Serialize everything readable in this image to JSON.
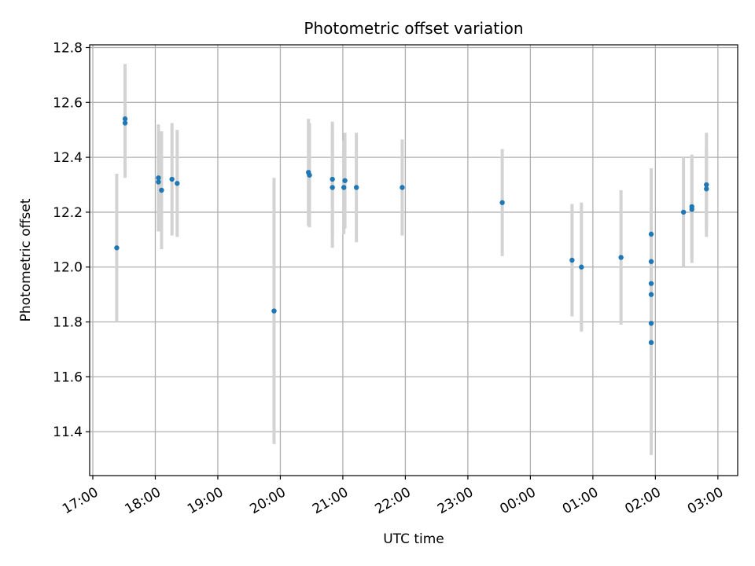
{
  "chart_data": {
    "type": "scatter",
    "title": "Photometric offset variation",
    "xlabel": "UTC time",
    "ylabel": "Photometric offset",
    "x_unit": "UTC time (hours, continuing past midnight)",
    "xlim": [
      "16:57",
      "03:19"
    ],
    "ylim": [
      11.24,
      12.81
    ],
    "yticks": [
      11.4,
      11.6,
      11.8,
      12.0,
      12.2,
      12.4,
      12.6,
      12.8
    ],
    "xticks": [
      "17:00",
      "18:00",
      "19:00",
      "20:00",
      "21:00",
      "22:00",
      "23:00",
      "00:00",
      "01:00",
      "02:00",
      "03:00"
    ],
    "grid": true,
    "marker_color": "#1f77b4",
    "errorbar_color": "#d3d3d3",
    "points": [
      {
        "t": "17:23",
        "y": 12.07,
        "err": 0.27
      },
      {
        "t": "17:31",
        "y": 12.54,
        "err": 0.2
      },
      {
        "t": "17:31",
        "y": 12.525,
        "err": 0.2
      },
      {
        "t": "18:03",
        "y": 12.325,
        "err": 0.195
      },
      {
        "t": "18:03",
        "y": 12.31,
        "err": 0.18
      },
      {
        "t": "18:06",
        "y": 12.28,
        "err": 0.215
      },
      {
        "t": "18:16",
        "y": 12.32,
        "err": 0.205
      },
      {
        "t": "18:21",
        "y": 12.305,
        "err": 0.195
      },
      {
        "t": "19:54",
        "y": 11.84,
        "err": 0.485
      },
      {
        "t": "20:27",
        "y": 12.345,
        "err": 0.195
      },
      {
        "t": "20:28",
        "y": 12.335,
        "err": 0.19
      },
      {
        "t": "20:50",
        "y": 12.32,
        "err": 0.21
      },
      {
        "t": "20:50",
        "y": 12.29,
        "err": 0.22
      },
      {
        "t": "21:01",
        "y": 12.29,
        "err": 0.17
      },
      {
        "t": "21:02",
        "y": 12.315,
        "err": 0.175
      },
      {
        "t": "21:13",
        "y": 12.29,
        "err": 0.2
      },
      {
        "t": "21:57",
        "y": 12.29,
        "err": 0.175
      },
      {
        "t": "23:33",
        "y": 12.235,
        "err": 0.195
      },
      {
        "t": "00:40",
        "y": 12.025,
        "err": 0.205
      },
      {
        "t": "00:49",
        "y": 12.0,
        "err": 0.235
      },
      {
        "t": "01:27",
        "y": 12.035,
        "err": 0.245
      },
      {
        "t": "01:56",
        "y": 12.12,
        "err": 0.24
      },
      {
        "t": "01:56",
        "y": 12.02,
        "err": 0.2
      },
      {
        "t": "01:56",
        "y": 11.94,
        "err": 0.12
      },
      {
        "t": "01:56",
        "y": 11.9,
        "err": 0.12
      },
      {
        "t": "01:56",
        "y": 11.795,
        "err": 0.12
      },
      {
        "t": "01:56",
        "y": 11.725,
        "err": 0.41
      },
      {
        "t": "02:27",
        "y": 12.2,
        "err": 0.2
      },
      {
        "t": "02:35",
        "y": 12.22,
        "err": 0.19
      },
      {
        "t": "02:35",
        "y": 12.21,
        "err": 0.195
      },
      {
        "t": "02:49",
        "y": 12.3,
        "err": 0.19
      },
      {
        "t": "02:49",
        "y": 12.285,
        "err": 0.15
      }
    ]
  }
}
